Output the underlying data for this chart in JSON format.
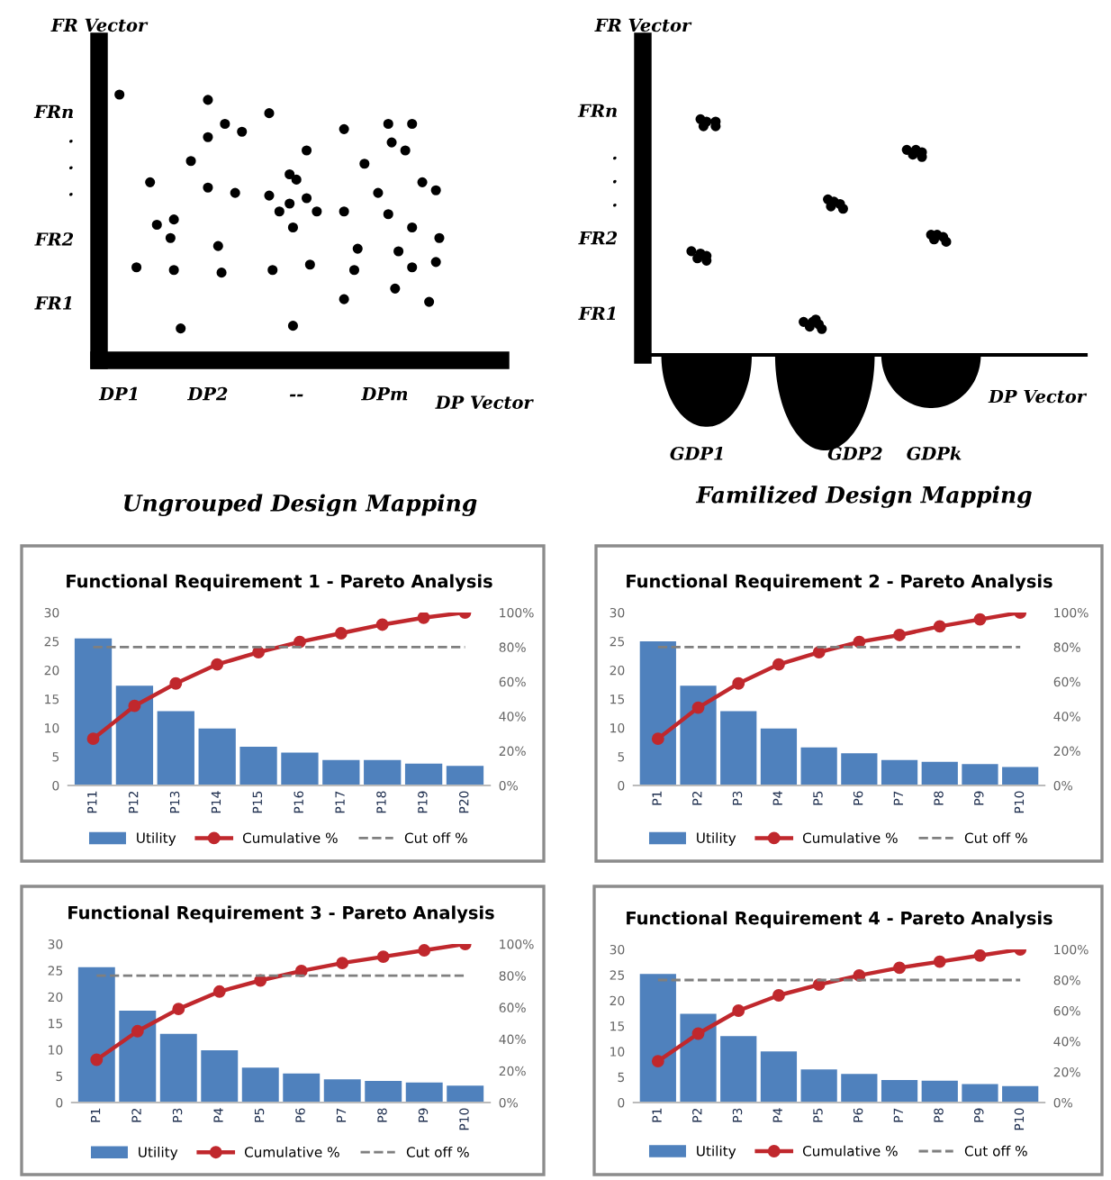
{
  "chart_data": [
    {
      "type": "other",
      "title": "Ungrouped Design Mapping",
      "xlabel": "DP Vector",
      "ylabel": "FR Vector",
      "annotations": [
        "DP1",
        "DP2",
        "--",
        "DPm",
        "FR1",
        "FR2",
        "·",
        "·",
        "·",
        "FRn"
      ]
    },
    {
      "type": "other",
      "title": "Familized Design Mapping",
      "xlabel": "DP Vector",
      "ylabel": "FR Vector",
      "annotations": [
        "GDP1",
        "GDP2",
        "GDPk",
        "FR1",
        "FR2",
        "·",
        "·",
        "·",
        "FRn"
      ]
    },
    {
      "type": "bar",
      "title": "Functional Requirement 1 - Pareto Analysis",
      "legend": "bottom",
      "grid": false,
      "categories": [
        "P11",
        "P12",
        "P13",
        "P14",
        "P15",
        "P16",
        "P17",
        "P18",
        "P19",
        "P20"
      ],
      "ylim": [
        0,
        30
      ],
      "yticks": [
        0,
        5,
        10,
        15,
        20,
        25,
        30
      ],
      "y2lim": [
        0,
        100
      ],
      "y2ticks": [
        {
          "value": 0,
          "label": "0%"
        },
        {
          "value": 20,
          "label": "20%"
        },
        {
          "value": 40,
          "label": "40%"
        },
        {
          "value": 60,
          "label": "60%"
        },
        {
          "value": 80,
          "label": "80%"
        },
        {
          "value": 100,
          "label": "100%"
        }
      ],
      "series": [
        {
          "name": "Utility",
          "type": "bar",
          "color": "#4f81bd",
          "values": [
            25.5,
            17.3,
            12.9,
            9.9,
            6.7,
            5.7,
            4.4,
            4.4,
            3.8,
            3.4
          ]
        },
        {
          "name": "Cumulative %",
          "type": "line",
          "axis": "y2",
          "color": "#c0282d",
          "marker": "circle",
          "values": [
            27,
            46,
            59,
            70,
            77,
            83,
            88,
            93,
            97,
            100
          ]
        },
        {
          "name": "Cut off %",
          "type": "line",
          "axis": "y2",
          "color": "#7f7f7f",
          "line_style": "dashed",
          "values": [
            80,
            80,
            80,
            80,
            80,
            80,
            80,
            80,
            80,
            80
          ]
        }
      ]
    },
    {
      "type": "bar",
      "title": "Functional Requirement 2 - Pareto Analysis",
      "legend": "bottom",
      "grid": false,
      "categories": [
        "P1",
        "P2",
        "P3",
        "P4",
        "P5",
        "P6",
        "P7",
        "P8",
        "P9",
        "P10"
      ],
      "ylim": [
        0,
        30
      ],
      "yticks": [
        0,
        5,
        10,
        15,
        20,
        25,
        30
      ],
      "y2lim": [
        0,
        100
      ],
      "y2ticks": [
        {
          "value": 0,
          "label": "0%"
        },
        {
          "value": 20,
          "label": "20%"
        },
        {
          "value": 40,
          "label": "40%"
        },
        {
          "value": 60,
          "label": "60%"
        },
        {
          "value": 80,
          "label": "80%"
        },
        {
          "value": 100,
          "label": "100%"
        }
      ],
      "series": [
        {
          "name": "Utility",
          "type": "bar",
          "color": "#4f81bd",
          "values": [
            25,
            17.3,
            12.9,
            9.9,
            6.6,
            5.6,
            4.4,
            4.1,
            3.7,
            3.2
          ]
        },
        {
          "name": "Cumulative %",
          "type": "line",
          "axis": "y2",
          "color": "#c0282d",
          "marker": "circle",
          "values": [
            27,
            45,
            59,
            70,
            77,
            83,
            87,
            92,
            96,
            100
          ]
        },
        {
          "name": "Cut off %",
          "type": "line",
          "axis": "y2",
          "color": "#7f7f7f",
          "line_style": "dashed",
          "values": [
            80,
            80,
            80,
            80,
            80,
            80,
            80,
            80,
            80,
            80
          ]
        }
      ]
    },
    {
      "type": "bar",
      "title": "Functional Requirement 3 - Pareto Analysis",
      "legend": "bottom",
      "grid": false,
      "categories": [
        "P1",
        "P2",
        "P3",
        "P4",
        "P5",
        "P6",
        "P7",
        "P8",
        "P9",
        "P10"
      ],
      "ylim": [
        0,
        30
      ],
      "yticks": [
        0,
        5,
        10,
        15,
        20,
        25,
        30
      ],
      "y2lim": [
        0,
        100
      ],
      "y2ticks": [
        {
          "value": 0,
          "label": "0%"
        },
        {
          "value": 20,
          "label": "20%"
        },
        {
          "value": 40,
          "label": "40%"
        },
        {
          "value": 60,
          "label": "60%"
        },
        {
          "value": 80,
          "label": "80%"
        },
        {
          "value": 100,
          "label": "100%"
        }
      ],
      "series": [
        {
          "name": "Utility",
          "type": "bar",
          "color": "#4f81bd",
          "values": [
            25.6,
            17.4,
            13,
            9.9,
            6.6,
            5.5,
            4.4,
            4.1,
            3.8,
            3.2
          ]
        },
        {
          "name": "Cumulative %",
          "type": "line",
          "axis": "y2",
          "color": "#c0282d",
          "marker": "circle",
          "values": [
            27,
            45,
            59,
            70,
            77,
            83,
            88,
            92,
            96,
            100
          ]
        },
        {
          "name": "Cut off %",
          "type": "line",
          "axis": "y2",
          "color": "#7f7f7f",
          "line_style": "dashed",
          "values": [
            80,
            80,
            80,
            80,
            80,
            80,
            80,
            80,
            80,
            80
          ]
        }
      ]
    },
    {
      "type": "bar",
      "title": "Functional Requirement 4 - Pareto Analysis",
      "legend": "bottom",
      "grid": false,
      "categories": [
        "P1",
        "P2",
        "P3",
        "P4",
        "P5",
        "P6",
        "P7",
        "P8",
        "P9",
        "P10"
      ],
      "ylim": [
        0,
        30
      ],
      "yticks": [
        0,
        5,
        10,
        15,
        20,
        25,
        30
      ],
      "y2lim": [
        0,
        100
      ],
      "y2ticks": [
        {
          "value": 0,
          "label": "0%"
        },
        {
          "value": 20,
          "label": "20%"
        },
        {
          "value": 40,
          "label": "40%"
        },
        {
          "value": 60,
          "label": "60%"
        },
        {
          "value": 80,
          "label": "80%"
        },
        {
          "value": 100,
          "label": "100%"
        }
      ],
      "series": [
        {
          "name": "Utility",
          "type": "bar",
          "color": "#4f81bd",
          "values": [
            25.2,
            17.4,
            13,
            10,
            6.5,
            5.6,
            4.4,
            4.3,
            3.6,
            3.2
          ]
        },
        {
          "name": "Cumulative %",
          "type": "line",
          "axis": "y2",
          "color": "#c0282d",
          "marker": "circle",
          "values": [
            27,
            45,
            60,
            70,
            77,
            83,
            88,
            92,
            96,
            100
          ]
        },
        {
          "name": "Cut off %",
          "type": "line",
          "axis": "y2",
          "color": "#7f7f7f",
          "line_style": "dashed",
          "values": [
            80,
            80,
            80,
            80,
            80,
            80,
            80,
            80,
            80,
            80
          ]
        }
      ]
    }
  ]
}
